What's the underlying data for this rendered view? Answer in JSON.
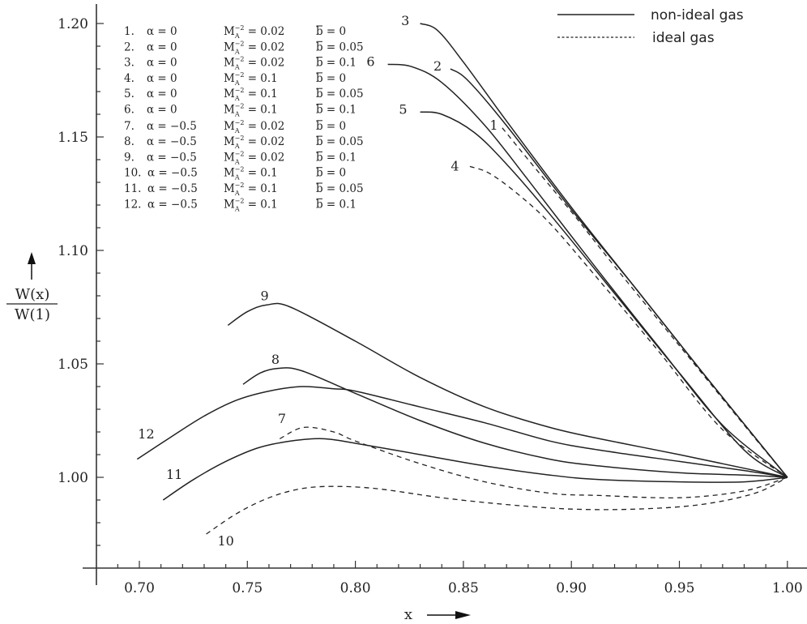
{
  "chart_data": {
    "type": "line",
    "title": "",
    "xlabel": "x",
    "ylabel_numerator": "W(x)",
    "ylabel_denominator": "W(1)",
    "xlim": [
      0.68,
      1.0
    ],
    "ylim": [
      0.96,
      1.205
    ],
    "grid": false,
    "x_ticks": [
      "0.70",
      "0.75",
      "0.80",
      "0.85",
      "0.90",
      "0.95",
      "1.00"
    ],
    "x_tick_values": [
      0.7,
      0.75,
      0.8,
      0.85,
      0.9,
      0.95,
      1.0
    ],
    "x_minor_step": 0.01,
    "y_ticks": [
      "1.00",
      "1.05",
      "1.10",
      "1.15",
      "1.20"
    ],
    "y_tick_values": [
      1.0,
      1.05,
      1.1,
      1.15,
      1.2
    ],
    "y_minor_step": 0.01,
    "legend": {
      "placement": "top-right",
      "entries": [
        {
          "label": "non-ideal gas",
          "style": "solid"
        },
        {
          "label": "ideal gas",
          "style": "dashed"
        }
      ]
    },
    "parameter_table": [
      {
        "n": "1.",
        "alpha": "α = 0",
        "M": "0.02",
        "b": "0"
      },
      {
        "n": "2.",
        "alpha": "α = 0",
        "M": "0.02",
        "b": "0.05"
      },
      {
        "n": "3.",
        "alpha": "α = 0",
        "M": "0.02",
        "b": "0.1"
      },
      {
        "n": "4.",
        "alpha": "α = 0",
        "M": "0.1",
        "b": "0"
      },
      {
        "n": "5.",
        "alpha": "α = 0",
        "M": "0.1",
        "b": "0.05"
      },
      {
        "n": "6.",
        "alpha": "α = 0",
        "M": "0.1",
        "b": "0.1"
      },
      {
        "n": "7.",
        "alpha": "α = −0.5",
        "M": "0.02",
        "b": "0"
      },
      {
        "n": "8.",
        "alpha": "α = −0.5",
        "M": "0.02",
        "b": "0.05"
      },
      {
        "n": "9.",
        "alpha": "α = −0.5",
        "M": "0.02",
        "b": "0.1"
      },
      {
        "n": "10.",
        "alpha": "α = −0.5",
        "M": "0.1",
        "b": "0"
      },
      {
        "n": "11.",
        "alpha": "α = −0.5",
        "M": "0.1",
        "b": "0.05"
      },
      {
        "n": "12.",
        "alpha": "α = −0.5",
        "M": "0.1",
        "b": "0.1"
      }
    ],
    "param_m_symbol": "M",
    "param_m_sub": "A",
    "param_m_sup": "−2",
    "param_b_symbol": "b",
    "series": [
      {
        "name": "1",
        "style": "dashed",
        "x": [
          0.868,
          0.88,
          0.9,
          0.92,
          0.95,
          0.98,
          1.0
        ],
        "y": [
          1.154,
          1.14,
          1.117,
          1.093,
          1.058,
          1.023,
          1.0
        ]
      },
      {
        "name": "2",
        "style": "solid",
        "x": [
          0.844,
          0.852,
          0.87,
          0.9,
          0.93,
          0.96,
          1.0
        ],
        "y": [
          1.18,
          1.175,
          1.155,
          1.118,
          1.083,
          1.047,
          1.0
        ]
      },
      {
        "name": "3",
        "style": "solid",
        "x": [
          0.83,
          0.838,
          0.85,
          0.87,
          0.9,
          0.93,
          0.96,
          1.0
        ],
        "y": [
          1.2,
          1.197,
          1.183,
          1.157,
          1.119,
          1.083,
          1.047,
          1.0
        ]
      },
      {
        "name": "4",
        "style": "dashed",
        "x": [
          0.853,
          0.862,
          0.875,
          0.89,
          0.91,
          0.94,
          0.97,
          1.0
        ],
        "y": [
          1.137,
          1.134,
          1.125,
          1.112,
          1.09,
          1.056,
          1.021,
          1.0
        ]
      },
      {
        "name": "5",
        "style": "solid",
        "x": [
          0.83,
          0.84,
          0.855,
          0.87,
          0.89,
          0.92,
          0.95,
          0.98,
          1.0
        ],
        "y": [
          1.161,
          1.16,
          1.152,
          1.138,
          1.116,
          1.081,
          1.046,
          1.012,
          1.0
        ]
      },
      {
        "name": "6",
        "style": "solid",
        "x": [
          0.815,
          0.826,
          0.84,
          0.86,
          0.88,
          0.91,
          0.94,
          0.97,
          1.0
        ],
        "y": [
          1.182,
          1.181,
          1.174,
          1.155,
          1.131,
          1.094,
          1.058,
          1.023,
          1.0
        ]
      },
      {
        "name": "7",
        "style": "dashed",
        "x": [
          0.765,
          0.776,
          0.79,
          0.8,
          0.83,
          0.86,
          0.89,
          0.913,
          0.95,
          0.98,
          1.0
        ],
        "y": [
          1.017,
          1.022,
          1.02,
          1.016,
          1.006,
          0.998,
          0.993,
          0.992,
          0.991,
          0.994,
          1.0
        ]
      },
      {
        "name": "8",
        "style": "solid",
        "x": [
          0.748,
          0.756,
          0.764,
          0.775,
          0.8,
          0.83,
          0.86,
          0.89,
          0.913,
          0.95,
          0.98,
          1.0
        ],
        "y": [
          1.041,
          1.046,
          1.048,
          1.047,
          1.037,
          1.025,
          1.015,
          1.008,
          1.005,
          1.002,
          1.001,
          1.0
        ]
      },
      {
        "name": "9",
        "style": "solid",
        "x": [
          0.741,
          0.75,
          0.759,
          0.77,
          0.8,
          0.83,
          0.86,
          0.89,
          0.913,
          0.95,
          0.98,
          1.0
        ],
        "y": [
          1.067,
          1.073,
          1.076,
          1.075,
          1.06,
          1.044,
          1.031,
          1.022,
          1.017,
          1.01,
          1.004,
          1.0
        ]
      },
      {
        "name": "10",
        "style": "dashed",
        "x": [
          0.731,
          0.745,
          0.76,
          0.775,
          0.79,
          0.81,
          0.84,
          0.87,
          0.9,
          0.93,
          0.96,
          0.985,
          1.0
        ],
        "y": [
          0.975,
          0.984,
          0.991,
          0.995,
          0.996,
          0.995,
          0.991,
          0.988,
          0.986,
          0.986,
          0.988,
          0.993,
          1.0
        ]
      },
      {
        "name": "11",
        "style": "solid",
        "x": [
          0.711,
          0.725,
          0.74,
          0.755,
          0.77,
          0.785,
          0.8,
          0.83,
          0.86,
          0.89,
          0.913,
          0.95,
          0.98,
          1.0
        ],
        "y": [
          0.99,
          0.999,
          1.007,
          1.013,
          1.016,
          1.017,
          1.015,
          1.01,
          1.005,
          1.001,
          0.999,
          0.998,
          0.998,
          1.0
        ]
      },
      {
        "name": "12",
        "style": "solid",
        "x": [
          0.699,
          0.715,
          0.73,
          0.745,
          0.76,
          0.775,
          0.79,
          0.8,
          0.83,
          0.86,
          0.89,
          0.913,
          0.95,
          0.98,
          1.0
        ],
        "y": [
          1.008,
          1.018,
          1.027,
          1.034,
          1.038,
          1.04,
          1.039,
          1.038,
          1.031,
          1.024,
          1.016,
          1.012,
          1.007,
          1.003,
          1.0
        ]
      }
    ],
    "curve_labels": [
      {
        "text": "1",
        "x": 0.866,
        "y": 1.155
      },
      {
        "text": "2",
        "x": 0.84,
        "y": 1.181
      },
      {
        "text": "3",
        "x": 0.825,
        "y": 1.201
      },
      {
        "text": "4",
        "x": 0.848,
        "y": 1.137
      },
      {
        "text": "5",
        "x": 0.824,
        "y": 1.162
      },
      {
        "text": "6",
        "x": 0.809,
        "y": 1.183
      },
      {
        "text": "7",
        "x": 0.766,
        "y": 1.024
      },
      {
        "text": "8",
        "x": 0.763,
        "y": 1.05
      },
      {
        "text": "9",
        "x": 0.758,
        "y": 1.078
      },
      {
        "text": "10",
        "x": 0.74,
        "y": 0.97
      },
      {
        "text": "11",
        "x": 0.72,
        "y": 1.001
      },
      {
        "text": "12",
        "x": 0.707,
        "y": 1.019
      }
    ]
  }
}
